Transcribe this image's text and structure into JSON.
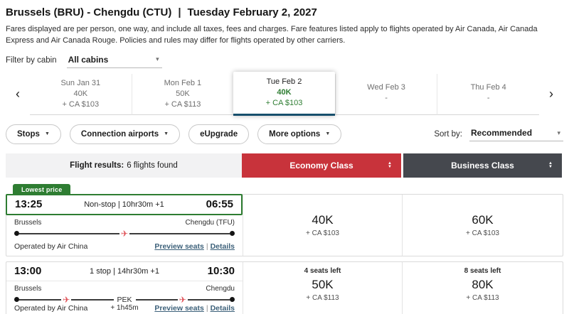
{
  "header": {
    "route": "Brussels (BRU) - Chengdu (CTU)",
    "separator": "|",
    "date": "Tuesday February 2, 2027",
    "disclaimer": "Fares displayed are per person, one way, and include all taxes, fees and charges. Fare features listed apply to flights operated by Air Canada, Air Canada Express and Air Canada Rouge. Policies and rules may differ for flights operated by other carriers."
  },
  "cabin_filter": {
    "label": "Filter by cabin",
    "value": "All cabins"
  },
  "date_carousel": {
    "days": [
      {
        "label": "Sun Jan 31",
        "points": "40K",
        "cash": "+ CA $103",
        "selected": false
      },
      {
        "label": "Mon Feb 1",
        "points": "50K",
        "cash": "+ CA $113",
        "selected": false
      },
      {
        "label": "Tue Feb 2",
        "points": "40K",
        "cash": "+ CA $103",
        "selected": true
      },
      {
        "label": "Wed Feb 3",
        "points": "-",
        "cash": "",
        "selected": false
      },
      {
        "label": "Thu Feb 4",
        "points": "-",
        "cash": "",
        "selected": false
      }
    ]
  },
  "filters": {
    "buttons": [
      {
        "label": "Stops",
        "has_caret": true
      },
      {
        "label": "Connection airports",
        "has_caret": true
      },
      {
        "label": "eUpgrade",
        "has_caret": false
      },
      {
        "label": "More options",
        "has_caret": true
      }
    ],
    "sort": {
      "label": "Sort by:",
      "value": "Recommended"
    }
  },
  "results_header": {
    "summary_label": "Flight results:",
    "summary_value": "6 flights found",
    "columns": [
      {
        "label": "Economy Class"
      },
      {
        "label": "Business Class"
      }
    ]
  },
  "link_separator": "|",
  "flights": [
    {
      "badge": "Lowest price",
      "depart": "13:25",
      "stops_duration": "Non-stop | 10hr30m +1",
      "arrive": "06:55",
      "origin": "Brussels",
      "destination": "Chengdu (TFU)",
      "stop_code": "",
      "stop_layover": "",
      "operated_by": "Operated by Air China",
      "links": [
        "Preview seats",
        "Details"
      ],
      "economy": {
        "seats_left": "",
        "points": "40K",
        "cash": "+ CA $103"
      },
      "business": {
        "seats_left": "",
        "points": "60K",
        "cash": "+ CA $103"
      }
    },
    {
      "badge": "",
      "depart": "13:00",
      "stops_duration": "1 stop | 14hr30m +1",
      "arrive": "10:30",
      "origin": "Brussels",
      "destination": "Chengdu",
      "stop_code": "PEK",
      "stop_layover": "+ 1h45m",
      "operated_by": "Operated by Air China",
      "links": [
        "Preview seats",
        "Details"
      ],
      "economy": {
        "seats_left": "4 seats left",
        "points": "50K",
        "cash": "+ CA $113"
      },
      "business": {
        "seats_left": "8 seats left",
        "points": "80K",
        "cash": "+ CA $113"
      }
    }
  ],
  "icons": {
    "chevron_left": "‹",
    "chevron_right": "›",
    "caret_down": "▾",
    "caret_up_small": "▲",
    "caret_down_small": "▼",
    "plane": "✈"
  },
  "colors": {
    "economy_header": "#c8333b",
    "business_header": "#45484e",
    "lowest_price_green": "#2e7d32",
    "selected_tab_underline": "#174f6c",
    "link_blue": "#3d617a",
    "plane_red": "#df4f55",
    "summary_bg": "#f2f2f3"
  }
}
